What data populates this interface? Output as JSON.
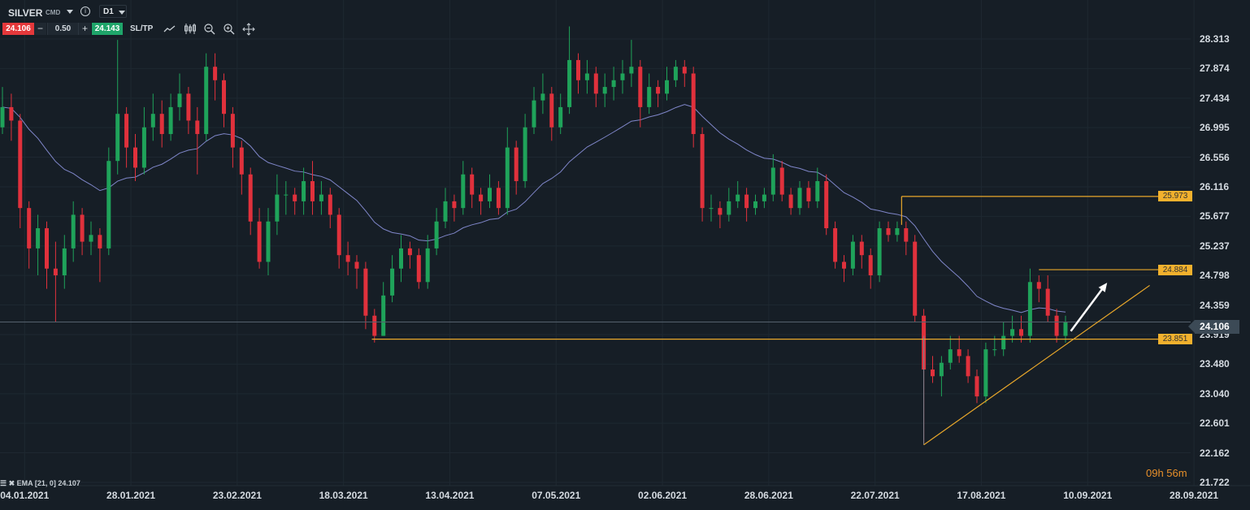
{
  "toolbar": {
    "symbol": "SILVER",
    "category": "CMD",
    "info_icon": "info-icon",
    "timeframe": "D1",
    "bid": "24.106",
    "minus": "−",
    "volume": "0.50",
    "plus": "+",
    "ask": "24.143",
    "sltp": "SL/TP",
    "tools": [
      "line-chart-icon",
      "candlestick-icon",
      "zoom-out-icon",
      "zoom-in-icon",
      "move-icon"
    ]
  },
  "indicator": {
    "label": "EMA [21, 0] 24.107"
  },
  "countdown": "09h 56m",
  "colors": {
    "up": "#1fa35a",
    "down": "#e0313c",
    "ema": "#7f86c9",
    "levels": "#e8a72a",
    "bid": "#e5383b",
    "ask": "#1fa56a",
    "background": "#161e26"
  },
  "chart_data": {
    "type": "candlestick",
    "title": "",
    "ylim": [
      21.722,
      28.313
    ],
    "y_ticks": [
      "28.313",
      "27.874",
      "27.434",
      "26.995",
      "26.556",
      "26.116",
      "25.677",
      "25.237",
      "24.798",
      "24.359",
      "23.919",
      "23.480",
      "23.040",
      "22.601",
      "22.162",
      "21.722"
    ],
    "x_ticks": [
      "04.01.2021",
      "28.01.2021",
      "23.02.2021",
      "18.03.2021",
      "13.04.2021",
      "07.05.2021",
      "02.06.2021",
      "28.06.2021",
      "22.07.2021",
      "17.08.2021",
      "10.09.2021",
      "28.09.2021"
    ],
    "grid": true,
    "current_price": 24.106,
    "ema": {
      "period": 21,
      "shift": 0,
      "value": 24.107
    },
    "levels": [
      {
        "label": "25.973",
        "value": 25.973
      },
      {
        "label": "24.884",
        "value": 24.884
      },
      {
        "label": "23.851",
        "value": 23.851
      }
    ],
    "trendline": {
      "from": [
        104,
        22.28
      ],
      "to": [
        129.5,
        24.65
      ]
    },
    "arrow": {
      "from": [
        120.6,
        23.97
      ],
      "to": [
        124.7,
        24.69
      ]
    },
    "candles": [
      [
        27.0,
        27.6,
        26.9,
        27.3
      ],
      [
        27.3,
        27.5,
        26.8,
        27.1
      ],
      [
        27.1,
        27.2,
        25.5,
        25.8
      ],
      [
        25.8,
        25.9,
        24.9,
        25.2
      ],
      [
        25.2,
        25.7,
        24.8,
        25.5
      ],
      [
        25.5,
        25.6,
        24.6,
        24.9
      ],
      [
        24.9,
        25.3,
        24.1,
        24.8
      ],
      [
        24.8,
        25.4,
        24.6,
        25.2
      ],
      [
        25.2,
        25.9,
        25.0,
        25.7
      ],
      [
        25.7,
        25.8,
        25.1,
        25.3
      ],
      [
        25.3,
        25.6,
        25.1,
        25.4
      ],
      [
        25.4,
        25.5,
        24.7,
        25.2
      ],
      [
        25.2,
        26.7,
        25.1,
        26.5
      ],
      [
        26.5,
        28.3,
        26.3,
        27.2
      ],
      [
        27.2,
        27.3,
        26.4,
        26.7
      ],
      [
        26.7,
        26.9,
        26.2,
        26.4
      ],
      [
        26.4,
        27.3,
        26.3,
        27.0
      ],
      [
        27.0,
        27.5,
        26.8,
        27.2
      ],
      [
        27.2,
        27.4,
        26.7,
        26.9
      ],
      [
        26.9,
        27.5,
        26.8,
        27.3
      ],
      [
        27.3,
        27.8,
        27.1,
        27.5
      ],
      [
        27.5,
        27.6,
        26.9,
        27.1
      ],
      [
        27.1,
        27.3,
        26.3,
        26.9
      ],
      [
        26.9,
        28.1,
        26.8,
        27.9
      ],
      [
        27.9,
        28.1,
        27.4,
        27.7
      ],
      [
        27.7,
        27.8,
        27.0,
        27.2
      ],
      [
        27.2,
        27.3,
        26.4,
        26.7
      ],
      [
        26.7,
        26.8,
        26.0,
        26.3
      ],
      [
        26.3,
        26.4,
        25.4,
        25.6
      ],
      [
        25.6,
        25.8,
        24.9,
        25.0
      ],
      [
        25.0,
        25.8,
        24.8,
        25.6
      ],
      [
        25.6,
        26.3,
        25.4,
        26.0
      ],
      [
        26.0,
        26.2,
        25.7,
        26.0
      ],
      [
        26.0,
        26.1,
        25.7,
        25.9
      ],
      [
        25.9,
        26.4,
        25.7,
        26.2
      ],
      [
        26.2,
        26.5,
        25.7,
        25.9
      ],
      [
        25.9,
        26.2,
        25.7,
        26.0
      ],
      [
        26.0,
        26.1,
        25.5,
        25.7
      ],
      [
        25.7,
        25.8,
        24.9,
        25.1
      ],
      [
        25.1,
        25.3,
        24.8,
        25.0
      ],
      [
        25.0,
        25.1,
        24.6,
        24.9
      ],
      [
        24.9,
        25.0,
        24.0,
        24.2
      ],
      [
        24.2,
        24.3,
        23.8,
        23.9
      ],
      [
        23.9,
        24.7,
        23.9,
        24.5
      ],
      [
        24.5,
        25.1,
        24.4,
        24.9
      ],
      [
        24.9,
        25.4,
        24.7,
        25.2
      ],
      [
        25.2,
        25.3,
        24.9,
        25.1
      ],
      [
        25.1,
        25.2,
        24.6,
        24.7
      ],
      [
        24.7,
        25.4,
        24.6,
        25.2
      ],
      [
        25.2,
        25.8,
        25.1,
        25.6
      ],
      [
        25.6,
        26.1,
        25.5,
        25.9
      ],
      [
        25.9,
        26.0,
        25.6,
        25.8
      ],
      [
        25.8,
        26.5,
        25.7,
        26.3
      ],
      [
        26.3,
        26.4,
        25.8,
        26.0
      ],
      [
        26.0,
        26.1,
        25.7,
        25.9
      ],
      [
        25.9,
        26.3,
        25.8,
        26.1
      ],
      [
        26.1,
        26.2,
        25.7,
        25.8
      ],
      [
        25.8,
        27.0,
        25.7,
        26.7
      ],
      [
        26.7,
        26.8,
        26.0,
        26.2
      ],
      [
        26.2,
        27.2,
        26.1,
        27.0
      ],
      [
        27.0,
        27.6,
        26.9,
        27.4
      ],
      [
        27.4,
        27.8,
        27.2,
        27.5
      ],
      [
        27.5,
        27.6,
        26.8,
        27.0
      ],
      [
        27.0,
        27.5,
        26.9,
        27.3
      ],
      [
        27.3,
        28.5,
        27.2,
        28.0
      ],
      [
        28.0,
        28.1,
        27.5,
        27.7
      ],
      [
        27.7,
        28.0,
        27.5,
        27.8
      ],
      [
        27.8,
        27.9,
        27.3,
        27.5
      ],
      [
        27.5,
        27.8,
        27.3,
        27.6
      ],
      [
        27.6,
        27.9,
        27.4,
        27.7
      ],
      [
        27.7,
        28.0,
        27.5,
        27.8
      ],
      [
        27.8,
        28.3,
        27.6,
        27.9
      ],
      [
        27.9,
        28.0,
        27.0,
        27.3
      ],
      [
        27.3,
        27.8,
        27.2,
        27.6
      ],
      [
        27.6,
        27.7,
        27.3,
        27.5
      ],
      [
        27.5,
        27.9,
        27.4,
        27.7
      ],
      [
        27.7,
        28.0,
        27.6,
        27.9
      ],
      [
        27.9,
        28.0,
        27.6,
        27.8
      ],
      [
        27.8,
        27.9,
        26.7,
        26.9
      ],
      [
        26.9,
        27.0,
        25.6,
        25.8
      ],
      [
        25.8,
        26.0,
        25.6,
        25.8
      ],
      [
        25.8,
        25.9,
        25.5,
        25.7
      ],
      [
        25.7,
        26.1,
        25.6,
        25.9
      ],
      [
        25.9,
        26.2,
        25.8,
        26.0
      ],
      [
        26.0,
        26.1,
        25.6,
        25.8
      ],
      [
        25.8,
        26.0,
        25.7,
        25.9
      ],
      [
        25.9,
        26.1,
        25.8,
        26.0
      ],
      [
        26.0,
        26.6,
        25.9,
        26.4
      ],
      [
        26.4,
        26.5,
        25.9,
        26.0
      ],
      [
        26.0,
        26.1,
        25.7,
        25.8
      ],
      [
        25.8,
        26.2,
        25.7,
        26.1
      ],
      [
        26.1,
        26.2,
        25.8,
        25.9
      ],
      [
        25.9,
        26.4,
        25.8,
        26.2
      ],
      [
        26.2,
        26.3,
        25.4,
        25.5
      ],
      [
        25.5,
        25.6,
        24.9,
        25.0
      ],
      [
        25.0,
        25.1,
        24.7,
        24.9
      ],
      [
        24.9,
        25.4,
        24.8,
        25.3
      ],
      [
        25.3,
        25.4,
        24.9,
        25.1
      ],
      [
        25.1,
        25.2,
        24.6,
        24.8
      ],
      [
        24.8,
        25.6,
        24.7,
        25.5
      ],
      [
        25.5,
        25.6,
        25.3,
        25.4
      ],
      [
        25.4,
        25.6,
        25.3,
        25.5
      ],
      [
        25.5,
        25.6,
        25.1,
        25.3
      ],
      [
        25.3,
        25.4,
        24.1,
        24.2
      ],
      [
        24.2,
        24.3,
        22.3,
        23.4
      ],
      [
        23.4,
        23.6,
        23.2,
        23.3
      ],
      [
        23.3,
        23.6,
        23.0,
        23.5
      ],
      [
        23.5,
        23.9,
        23.4,
        23.7
      ],
      [
        23.7,
        23.9,
        23.5,
        23.6
      ],
      [
        23.6,
        23.7,
        23.2,
        23.3
      ],
      [
        23.3,
        23.4,
        22.9,
        23.0
      ],
      [
        23.0,
        23.8,
        22.9,
        23.7
      ],
      [
        23.7,
        23.9,
        23.6,
        23.7
      ],
      [
        23.7,
        24.1,
        23.6,
        23.9
      ],
      [
        23.9,
        24.2,
        23.8,
        24.0
      ],
      [
        24.0,
        24.2,
        23.8,
        23.9
      ],
      [
        23.9,
        24.9,
        23.8,
        24.7
      ],
      [
        24.7,
        24.8,
        24.4,
        24.6
      ],
      [
        24.6,
        24.8,
        24.1,
        24.2
      ],
      [
        24.2,
        24.3,
        23.8,
        23.9
      ],
      [
        23.9,
        24.2,
        23.8,
        24.1
      ]
    ]
  }
}
